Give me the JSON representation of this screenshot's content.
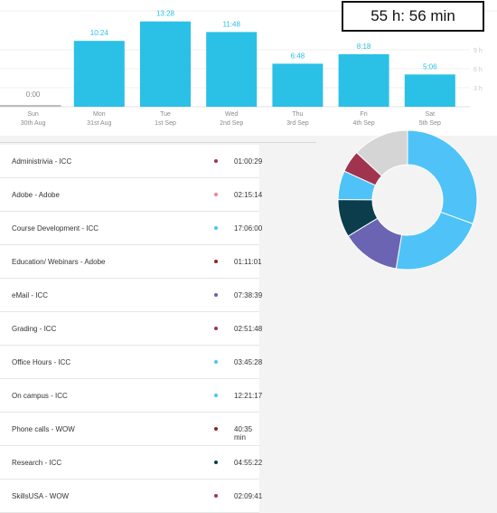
{
  "total_time": "55 h: 56 min",
  "chart_data": {
    "type": "bar",
    "categories": [
      "Sun",
      "Mon",
      "Tue",
      "Wed",
      "Thu",
      "Fri",
      "Sat"
    ],
    "dates": [
      "30th Aug",
      "31st Aug",
      "1st Sep",
      "2nd Sep",
      "3rd Sep",
      "4th Sep",
      "5th Sep"
    ],
    "values": [
      0,
      10.4,
      13.47,
      11.8,
      6.8,
      8.3,
      5.1
    ],
    "value_labels": [
      "0:00",
      "10:24",
      "13:28",
      "11:48",
      "6:48",
      "8:18",
      "5:06"
    ],
    "yticks": [
      "9 h",
      "6 h",
      "3 h"
    ],
    "ylim": [
      0,
      14
    ],
    "bar_color": "#2bc0e6",
    "zero_label_color": "#888888"
  },
  "activities": [
    {
      "name": "Administrivia - ICC",
      "time": "01:00:29",
      "color": "#a0344f"
    },
    {
      "name": "Adobe - Adobe",
      "time": "02:15:14",
      "color": "#f0849a"
    },
    {
      "name": "Course Development - ICC",
      "time": "17:06:00",
      "color": "#4fc3f7"
    },
    {
      "name": "Education/ Webinars - Adobe",
      "time": "01:11:01",
      "color": "#8b2a1b"
    },
    {
      "name": "eMail - ICC",
      "time": "07:38:39",
      "color": "#6a5fb3"
    },
    {
      "name": "Grading - ICC",
      "time": "02:51:48",
      "color": "#a0344f"
    },
    {
      "name": "Office Hours - ICC",
      "time": "03:45:28",
      "color": "#4fc3f7"
    },
    {
      "name": "On campus - ICC",
      "time": "12:21:17",
      "color": "#4fc3f7"
    },
    {
      "name": "Phone calls - WOW",
      "time": "40:35 min",
      "color": "#8b2a1b"
    },
    {
      "name": "Research - ICC",
      "time": "04:55:22",
      "color": "#0b3d4d"
    },
    {
      "name": "SkillsUSA - WOW",
      "time": "02:09:41",
      "color": "#a0344f"
    }
  ],
  "donut_data": {
    "values": [
      17.1,
      12.36,
      7.64,
      4.92,
      3.76,
      2.86,
      7.32
    ],
    "colors": [
      "#4fc3f7",
      "#4fc3f7",
      "#6a64b3",
      "#0b3d4d",
      "#4fc3f7",
      "#a0344f",
      "#d5d5d5"
    ]
  }
}
